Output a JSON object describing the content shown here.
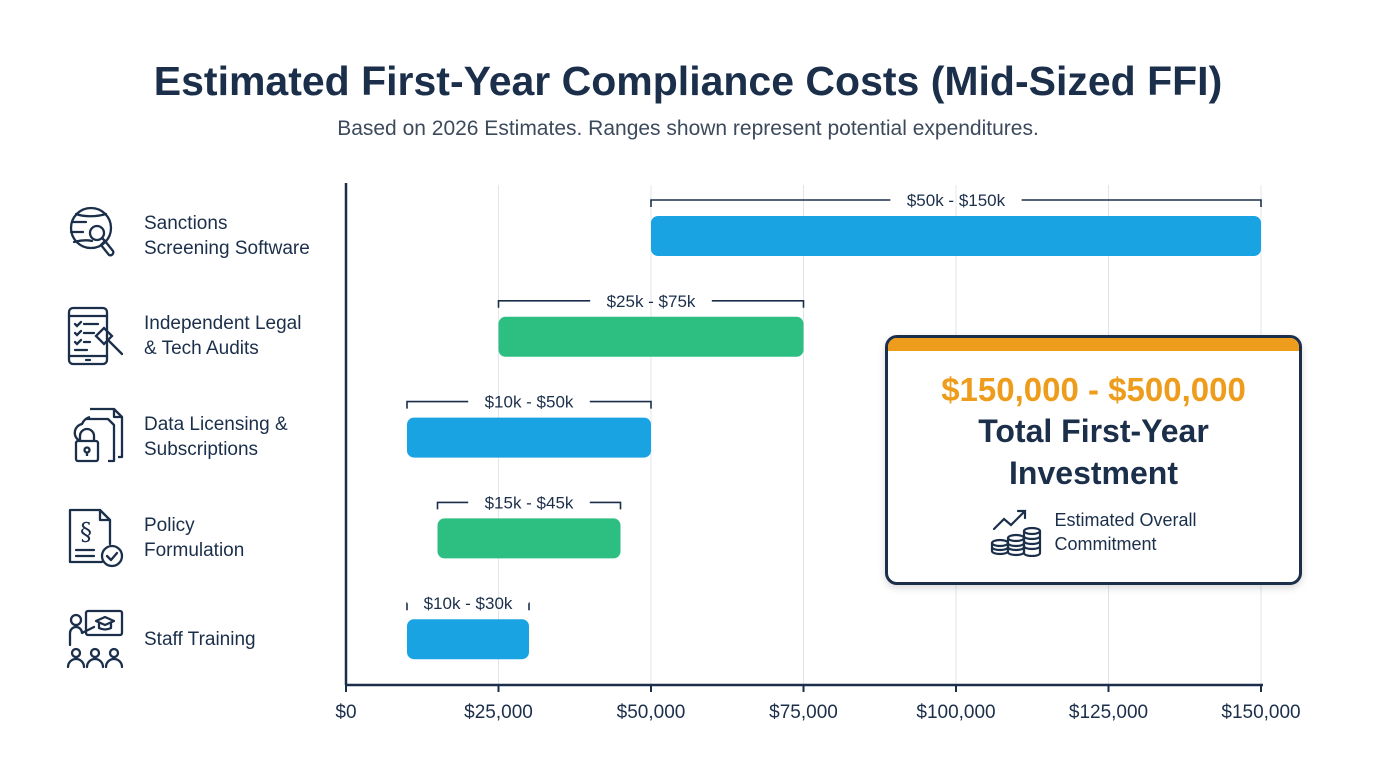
{
  "title": "Estimated First-Year Compliance Costs (Mid-Sized FFI)",
  "subtitle": "Based on 2026 Estimates. Ranges shown represent potential expenditures.",
  "colors": {
    "blue": "#1aa3e3",
    "green": "#2dbe82",
    "navy": "#1b2f4b",
    "orange": "#ee9c1b"
  },
  "categories": [
    {
      "label": "Sanctions\nScreening Software",
      "icon": "globe-search-icon"
    },
    {
      "label": "Independent Legal\n& Tech Audits",
      "icon": "tablet-checklist-gavel-icon"
    },
    {
      "label": "Data Licensing &\nSubscriptions",
      "icon": "cloud-documents-lock-icon"
    },
    {
      "label": "Policy\nFormulation",
      "icon": "document-section-check-icon"
    },
    {
      "label": "Staff Training",
      "icon": "presenter-audience-icon"
    }
  ],
  "chart_data": {
    "type": "bar",
    "orientation": "horizontal-range",
    "title": "Estimated First-Year Compliance Costs (Mid-Sized FFI)",
    "subtitle": "Based on 2026 Estimates. Ranges shown represent potential expenditures.",
    "categories": [
      "Sanctions Screening Software",
      "Independent Legal & Tech Audits",
      "Data Licensing & Subscriptions",
      "Policy Formulation",
      "Staff Training"
    ],
    "ranges": [
      {
        "low": 50000,
        "high": 150000,
        "label": "$50k - $150k",
        "color": "#1aa3e3"
      },
      {
        "low": 25000,
        "high": 75000,
        "label": "$25k - $75k",
        "color": "#2dbe82"
      },
      {
        "low": 10000,
        "high": 50000,
        "label": "$10k - $50k",
        "color": "#1aa3e3"
      },
      {
        "low": 15000,
        "high": 45000,
        "label": "$15k - $45k",
        "color": "#2dbe82"
      },
      {
        "low": 10000,
        "high": 30000,
        "label": "$10k - $30k",
        "color": "#1aa3e3"
      }
    ],
    "xlim": [
      0,
      150000
    ],
    "xticks": [
      0,
      25000,
      50000,
      75000,
      100000,
      125000,
      150000
    ],
    "xtick_labels": [
      "$0",
      "$25,000",
      "$50,000",
      "$75,000",
      "$100,000",
      "$125,000",
      "$150,000"
    ],
    "grid": true,
    "xlabel": "",
    "ylabel": ""
  },
  "summary": {
    "range": "$150,000 - $500,000",
    "heading_line1": "Total First-Year",
    "heading_line2": "Investment",
    "note": "Estimated Overall\nCommitment",
    "icon": "coins-growth-icon"
  }
}
